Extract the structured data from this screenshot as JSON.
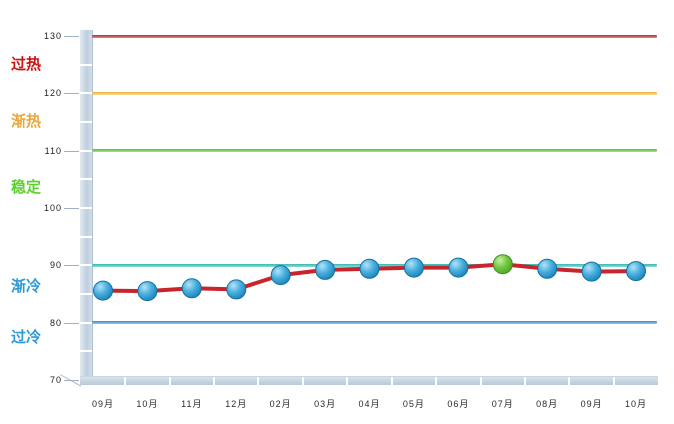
{
  "chart_data": {
    "type": "line",
    "title": "",
    "xlabel": "",
    "ylabel": "",
    "legend": false,
    "grid": false,
    "categories": [
      "09月",
      "10月",
      "11月",
      "12月",
      "02月",
      "03月",
      "04月",
      "05月",
      "06月",
      "07月",
      "08月",
      "09月",
      "10月"
    ],
    "values": [
      85.6,
      85.5,
      86.0,
      85.8,
      88.3,
      89.2,
      89.4,
      89.6,
      89.6,
      90.2,
      89.4,
      88.9,
      89.0
    ],
    "highlight_index": 9,
    "ylim": [
      70,
      130
    ],
    "yticks": [
      130,
      120,
      110,
      100,
      90,
      80,
      70
    ],
    "line_color": "#c9242b",
    "marker_color": "#2f9fd4",
    "marker_border_color": "#166f9f",
    "highlight_marker_color": "#5cb832",
    "highlight_marker_border_color": "#3f8a20",
    "reference_lines": [
      {
        "value": 130,
        "color": "#a93438",
        "color_light": "#d98a8d"
      },
      {
        "value": 120,
        "color": "#e9b43c",
        "color_light": "#f8da96"
      },
      {
        "value": 110,
        "color": "#62b944",
        "color_light": "#a8dd8f"
      },
      {
        "value": 90,
        "color": "#35b8b2",
        "color_light": "#8adbd4"
      },
      {
        "value": 80,
        "color": "#3f8cc6",
        "color_light": "#9ec4e4"
      }
    ],
    "zones": [
      {
        "key": "overheated",
        "label": "过热",
        "color": "#cc1111",
        "at": 125
      },
      {
        "key": "warming",
        "label": "渐热",
        "color": "#eba73c",
        "at": 115
      },
      {
        "key": "stable",
        "label": "稳定",
        "color": "#5ecf30",
        "at": 103.5
      },
      {
        "key": "cooling",
        "label": "渐冷",
        "color": "#2b9bd7",
        "at": 86.3
      },
      {
        "key": "overcooled",
        "label": "过冷",
        "color": "#2b9bd7",
        "at": 77.3
      }
    ]
  }
}
